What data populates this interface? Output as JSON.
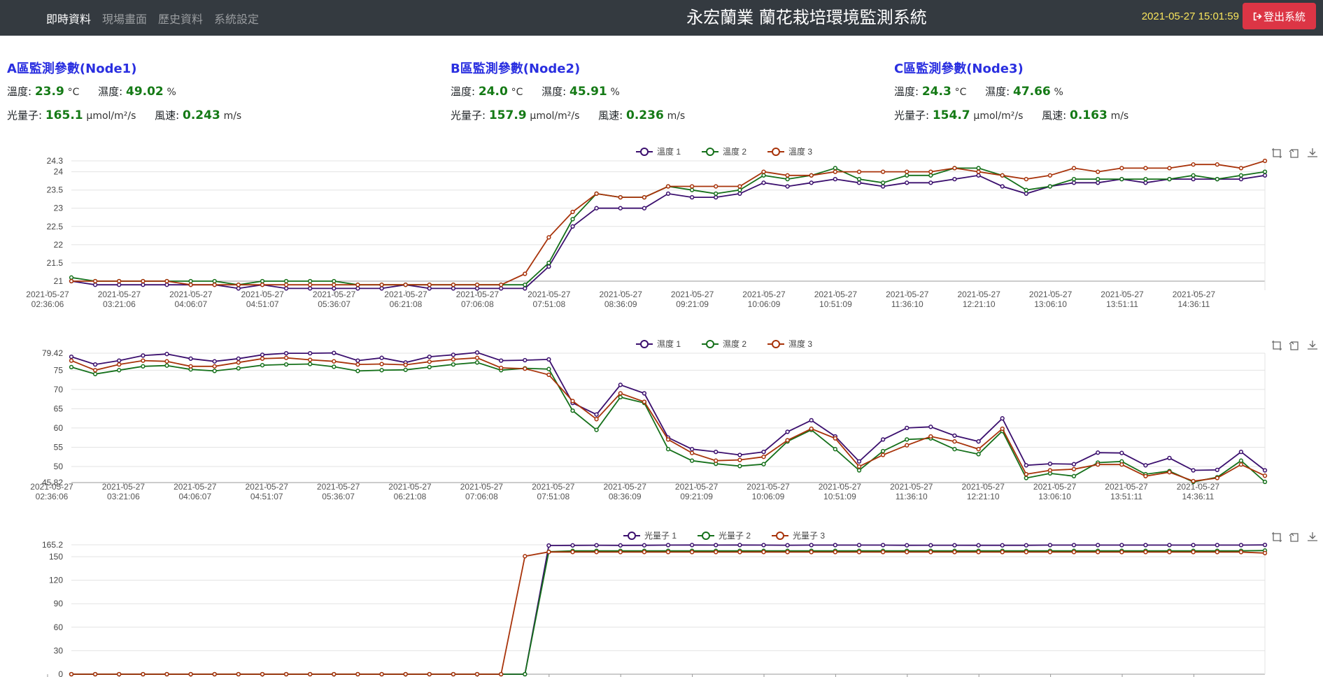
{
  "nav": {
    "links": [
      {
        "label": "即時資料",
        "active": true
      },
      {
        "label": "現場畫面",
        "active": false
      },
      {
        "label": "歷史資料",
        "active": false
      },
      {
        "label": "系統設定",
        "active": false
      }
    ],
    "brand": "永宏蘭業 蘭花栽培環境監測系統",
    "datetime": "2021-05-27 15:01:59",
    "logout_label": "登出系統"
  },
  "nodes": [
    {
      "title": "A區監測參數(Node1)",
      "temp_label": "溫度:",
      "temp": "23.9",
      "temp_unit": "°C",
      "hum_label": "濕度:",
      "hum": "49.02",
      "hum_unit": "%",
      "light_label": "光量子:",
      "light": "165.1",
      "light_unit": "μmol/m²/s",
      "wind_label": "風速:",
      "wind": "0.243",
      "wind_unit": "m/s"
    },
    {
      "title": "B區監測參數(Node2)",
      "temp_label": "溫度:",
      "temp": "24.0",
      "temp_unit": "°C",
      "hum_label": "濕度:",
      "hum": "45.91",
      "hum_unit": "%",
      "light_label": "光量子:",
      "light": "157.9",
      "light_unit": "μmol/m²/s",
      "wind_label": "風速:",
      "wind": "0.236",
      "wind_unit": "m/s"
    },
    {
      "title": "C區監測參數(Node3)",
      "temp_label": "溫度:",
      "temp": "24.3",
      "temp_unit": "°C",
      "hum_label": "濕度:",
      "hum": "47.66",
      "hum_unit": "%",
      "light_label": "光量子:",
      "light": "154.7",
      "light_unit": "μmol/m²/s",
      "wind_label": "風速:",
      "wind": "0.163",
      "wind_unit": "m/s"
    }
  ],
  "colors": {
    "series1": "#3b0f6e",
    "series2": "#15701a",
    "series3": "#a8330a",
    "accent": "#2a2fe0",
    "value": "#157a16",
    "logout": "#dc3545"
  },
  "icons": {
    "toolbox": [
      "zoom-icon",
      "restore-icon",
      "save-image-icon"
    ],
    "logout": "sign-out-icon"
  },
  "chart_data": [
    {
      "type": "line",
      "title": "",
      "x_date": "2021-05-27",
      "x_ticks": [
        "02:36:06",
        "03:21:06",
        "04:06:07",
        "04:51:07",
        "05:36:07",
        "06:21:08",
        "07:06:08",
        "07:51:08",
        "08:36:09",
        "09:21:09",
        "10:06:09",
        "10:51:09",
        "11:36:10",
        "12:21:10",
        "13:06:10",
        "13:51:11",
        "14:36:11"
      ],
      "ylim": [
        20.75,
        24.3
      ],
      "y_ticks": [
        "21",
        "21.5",
        "22",
        "22.5",
        "23",
        "23.5",
        "24",
        "24.3"
      ],
      "series": [
        {
          "name": "溫度 1",
          "values": [
            21.0,
            20.9,
            20.9,
            20.9,
            20.9,
            20.9,
            20.9,
            20.8,
            20.9,
            20.8,
            20.8,
            20.8,
            20.8,
            20.8,
            20.9,
            20.8,
            20.8,
            20.8,
            20.8,
            20.8,
            21.4,
            22.5,
            23.0,
            23.0,
            23.0,
            23.4,
            23.3,
            23.3,
            23.4,
            23.7,
            23.6,
            23.7,
            23.8,
            23.7,
            23.6,
            23.7,
            23.7,
            23.8,
            23.9,
            23.6,
            23.4,
            23.6,
            23.7,
            23.7,
            23.8,
            23.7,
            23.8,
            23.8,
            23.8,
            23.8,
            23.9
          ]
        },
        {
          "name": "溫度 2",
          "values": [
            21.1,
            21.0,
            21.0,
            21.0,
            21.0,
            21.0,
            21.0,
            20.9,
            21.0,
            21.0,
            21.0,
            21.0,
            20.9,
            20.9,
            20.9,
            20.9,
            20.9,
            20.9,
            20.9,
            20.9,
            21.5,
            22.7,
            23.4,
            23.3,
            23.3,
            23.6,
            23.5,
            23.4,
            23.5,
            23.9,
            23.8,
            23.9,
            24.1,
            23.8,
            23.7,
            23.9,
            23.9,
            24.1,
            24.1,
            23.9,
            23.5,
            23.6,
            23.8,
            23.8,
            23.8,
            23.8,
            23.8,
            23.9,
            23.8,
            23.9,
            24.0
          ]
        },
        {
          "name": "溫度 3",
          "values": [
            21.0,
            21.0,
            21.0,
            21.0,
            21.0,
            20.9,
            20.9,
            20.9,
            20.9,
            20.9,
            20.9,
            20.9,
            20.9,
            20.9,
            20.9,
            20.9,
            20.9,
            20.9,
            20.9,
            21.2,
            22.2,
            22.9,
            23.4,
            23.3,
            23.3,
            23.6,
            23.6,
            23.6,
            23.6,
            24.0,
            23.9,
            23.9,
            24.0,
            24.0,
            24.0,
            24.0,
            24.0,
            24.1,
            24.0,
            23.9,
            23.8,
            23.9,
            24.1,
            24.0,
            24.1,
            24.1,
            24.1,
            24.2,
            24.2,
            24.1,
            24.3
          ]
        }
      ]
    },
    {
      "type": "line",
      "title": "",
      "x_date": "2021-05-27",
      "x_ticks": [
        "02:36:06",
        "03:21:06",
        "04:06:07",
        "04:51:07",
        "05:36:07",
        "06:21:08",
        "07:06:08",
        "07:51:08",
        "08:36:09",
        "09:21:09",
        "10:06:09",
        "10:51:09",
        "11:36:10",
        "12:21:10",
        "13:06:10",
        "13:51:11",
        "14:36:11"
      ],
      "ylim": [
        45.82,
        79.42
      ],
      "y_ticks": [
        "45.82",
        "50",
        "55",
        "60",
        "65",
        "70",
        "75",
        "79.42"
      ],
      "series": [
        {
          "name": "濕度 1",
          "values": [
            78.5,
            76.5,
            77.5,
            78.8,
            79.2,
            78.0,
            77.3,
            78.0,
            79.0,
            79.4,
            79.4,
            79.5,
            77.5,
            78.2,
            77.0,
            78.5,
            79.0,
            79.6,
            77.5,
            77.6,
            77.8,
            66.5,
            63.5,
            71.2,
            69.0,
            57.5,
            54.5,
            53.8,
            53.0,
            53.8,
            59.0,
            62.0,
            57.8,
            51.3,
            57.0,
            60.0,
            60.3,
            58.0,
            56.5,
            62.5,
            50.3,
            50.7,
            50.6,
            53.6,
            53.5,
            50.3,
            52.2,
            49.0,
            49.1,
            53.8,
            49.0
          ]
        },
        {
          "name": "濕度 2",
          "values": [
            75.8,
            74.0,
            75.0,
            76.0,
            76.2,
            75.2,
            74.8,
            75.5,
            76.3,
            76.5,
            76.6,
            75.9,
            74.8,
            75.0,
            75.1,
            75.8,
            76.5,
            77.0,
            75.0,
            75.5,
            75.3,
            64.5,
            59.5,
            68.0,
            66.5,
            54.5,
            51.5,
            50.7,
            50.1,
            50.6,
            56.5,
            59.5,
            54.5,
            49.0,
            54.0,
            57.0,
            57.3,
            54.5,
            53.2,
            59.2,
            47.0,
            48.2,
            47.5,
            51.0,
            51.3,
            48.0,
            48.8,
            46.0,
            47.2,
            51.5,
            46.0
          ]
        },
        {
          "name": "濕度 3",
          "values": [
            77.5,
            75.0,
            76.5,
            77.5,
            77.3,
            76.0,
            76.0,
            77.0,
            78.0,
            78.2,
            77.7,
            77.3,
            76.5,
            76.6,
            76.4,
            77.2,
            77.8,
            78.2,
            75.6,
            75.4,
            73.8,
            67.0,
            62.3,
            69.0,
            66.8,
            57.0,
            53.5,
            51.5,
            51.7,
            52.5,
            56.8,
            59.8,
            57.3,
            50.0,
            53.0,
            55.5,
            57.8,
            56.5,
            54.5,
            59.8,
            48.0,
            49.0,
            49.3,
            50.5,
            50.5,
            47.5,
            48.5,
            46.2,
            47.0,
            50.5,
            47.6
          ]
        }
      ]
    },
    {
      "type": "line",
      "title": "",
      "ylim": [
        0,
        165.2
      ],
      "y_ticks": [
        "0",
        "30",
        "60",
        "90",
        "120",
        "150",
        "165.2"
      ],
      "series": [
        {
          "name": "光量子 1",
          "values": [
            0,
            0,
            0,
            0,
            0,
            0,
            0,
            0,
            0,
            0,
            0,
            0,
            0,
            0,
            0,
            0,
            0,
            0,
            0,
            0,
            164.3,
            164.5,
            164.7,
            164.5,
            164.6,
            164.8,
            164.9,
            164.8,
            164.9,
            164.8,
            164.7,
            164.8,
            164.8,
            164.8,
            164.8,
            164.6,
            164.7,
            164.7,
            164.6,
            164.6,
            164.6,
            164.8,
            164.8,
            164.8,
            164.8,
            164.8,
            164.8,
            164.8,
            164.8,
            164.8,
            165.1
          ]
        },
        {
          "name": "光量子 2",
          "values": [
            0,
            0,
            0,
            0,
            0,
            0,
            0,
            0,
            0,
            0,
            0,
            0,
            0,
            0,
            0,
            0,
            0,
            0,
            0,
            0,
            156.4,
            157.4,
            157.5,
            157.5,
            157.5,
            157.5,
            157.5,
            157.4,
            157.5,
            157.4,
            157.4,
            157.5,
            157.5,
            157.4,
            157.4,
            157.5,
            157.5,
            157.4,
            157.4,
            157.5,
            157.4,
            157.5,
            157.4,
            157.4,
            157.5,
            157.5,
            157.5,
            157.5,
            157.5,
            157.5,
            157.9
          ]
        },
        {
          "name": "光量子 3",
          "values": [
            0,
            0,
            0,
            0,
            0,
            0,
            0,
            0,
            0,
            0,
            0,
            0,
            0,
            0,
            0,
            0,
            0,
            0,
            0,
            150.6,
            156.1,
            156.0,
            156.0,
            155.9,
            156.0,
            155.9,
            155.9,
            155.9,
            155.9,
            156.0,
            155.9,
            155.9,
            155.9,
            155.9,
            155.9,
            155.9,
            155.9,
            155.9,
            155.9,
            155.9,
            155.9,
            155.9,
            155.9,
            155.9,
            155.9,
            155.9,
            155.9,
            155.9,
            155.9,
            155.9,
            154.7
          ]
        }
      ]
    }
  ]
}
